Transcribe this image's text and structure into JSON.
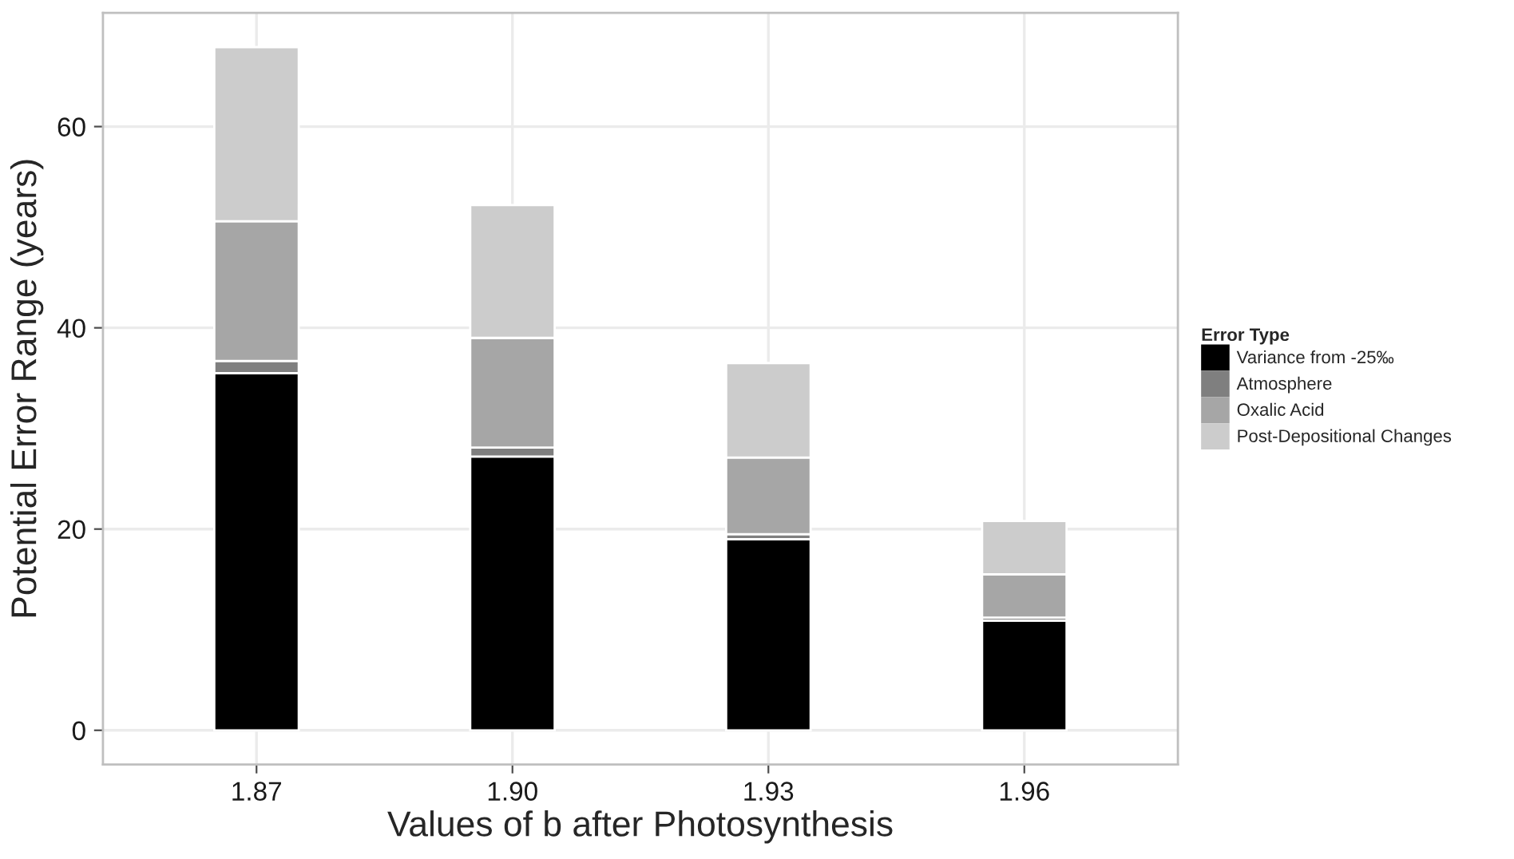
{
  "chart_data": {
    "type": "bar",
    "stacked": true,
    "xlabel": "Values of b after Photosynthesis",
    "ylabel": "Potential Error Range (years)",
    "legend_title": "Error Type",
    "categories": [
      "1.87",
      "1.90",
      "1.93",
      "1.96"
    ],
    "series": [
      {
        "name": "Variance from -25‰",
        "color": "#000000",
        "values": [
          35.5,
          27.2,
          19.0,
          10.9
        ]
      },
      {
        "name": "Atmosphere",
        "color": "#7f7f7f",
        "values": [
          1.2,
          0.9,
          0.5,
          0.3
        ]
      },
      {
        "name": "Oxalic Acid",
        "color": "#a6a6a6",
        "values": [
          13.9,
          10.9,
          7.6,
          4.3
        ]
      },
      {
        "name": "Post-Depositional Changes",
        "color": "#cccccc",
        "values": [
          17.3,
          13.2,
          9.4,
          5.3
        ]
      }
    ],
    "ylim": [
      -3.4,
      71.3
    ],
    "yticks": [
      0,
      20,
      40,
      60
    ],
    "grid": true,
    "legend": "right"
  }
}
